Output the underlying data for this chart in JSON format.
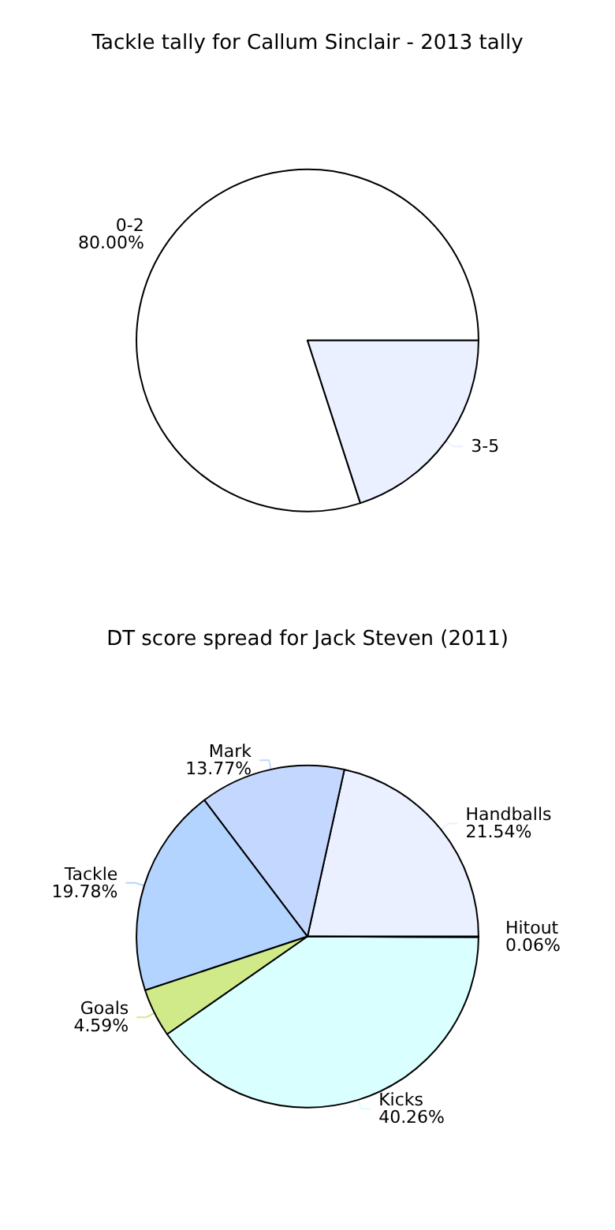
{
  "chart_data": [
    {
      "type": "pie",
      "title": "Tackle tally for Callum Sinclair - 2013 tally",
      "categories": [
        "0-2",
        "3-5"
      ],
      "values": [
        80,
        20
      ],
      "colors": [
        "#ffffff",
        "#eaf0ff"
      ],
      "value_labels": [
        "80.00%",
        null
      ]
    },
    {
      "type": "pie",
      "title": "DT score spread for Jack Steven (2011)",
      "categories": [
        "Handballs",
        "Mark",
        "Tackle",
        "Goals",
        "Kicks",
        "Hitout"
      ],
      "values": [
        21.54,
        13.77,
        19.78,
        4.59,
        40.26,
        0.06
      ],
      "colors": [
        "#eaf0ff",
        "#c4d8ff",
        "#b3d4ff",
        "#d0ea8a",
        "#d9ffff",
        "#ffffff"
      ],
      "value_labels": [
        "21.54%",
        "13.77%",
        "19.78%",
        "4.59%",
        "40.26%",
        "0.06%"
      ]
    }
  ]
}
